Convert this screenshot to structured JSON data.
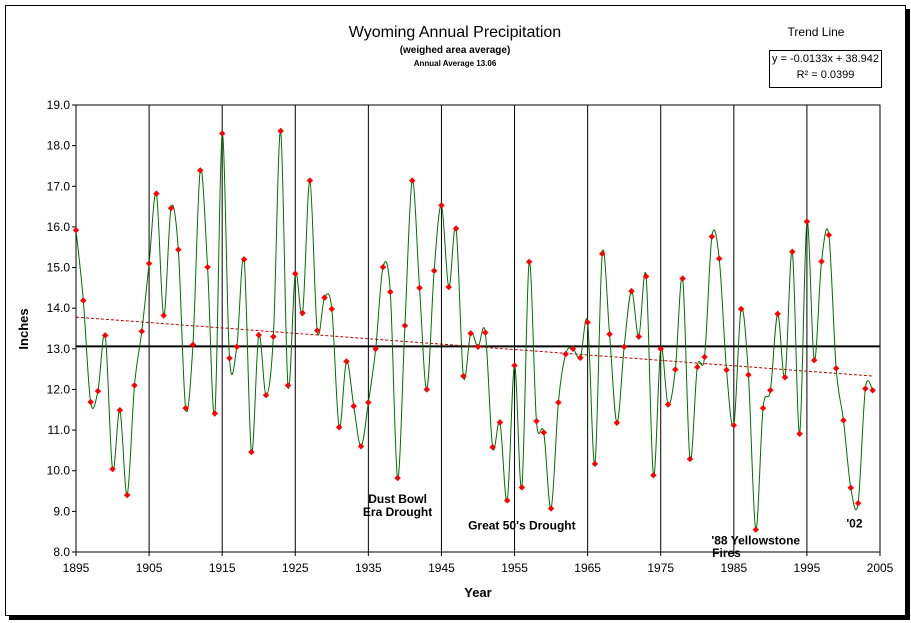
{
  "chart_data": {
    "type": "line",
    "title": "Wyoming Annual Precipitation",
    "subtitle": "(weighed area average)",
    "average_label": "Annual Average 13.06",
    "xlabel": "Year",
    "ylabel": "Inches",
    "xlim": [
      1895,
      2005
    ],
    "ylim": [
      8.0,
      19.0
    ],
    "x_ticks": [
      "1895",
      "1905",
      "1915",
      "1925",
      "1935",
      "1945",
      "1955",
      "1965",
      "1975",
      "1985",
      "1995",
      "2005"
    ],
    "y_ticks": [
      "8.0",
      "9.0",
      "10.0",
      "11.0",
      "12.0",
      "13.0",
      "14.0",
      "15.0",
      "16.0",
      "17.0",
      "18.0",
      "19.0"
    ],
    "grid": "vertical lines at decade ticks",
    "series": [
      {
        "color": "#007000",
        "marker_color": "#ff0000",
        "x": [
          1895,
          1896,
          1897,
          1898,
          1899,
          1900,
          1901,
          1902,
          1903,
          1904,
          1905,
          1906,
          1907,
          1908,
          1909,
          1910,
          1911,
          1912,
          1913,
          1914,
          1915,
          1916,
          1917,
          1918,
          1919,
          1920,
          1921,
          1922,
          1923,
          1924,
          1925,
          1926,
          1927,
          1928,
          1929,
          1930,
          1931,
          1932,
          1933,
          1934,
          1935,
          1936,
          1937,
          1938,
          1939,
          1940,
          1941,
          1942,
          1943,
          1944,
          1945,
          1946,
          1947,
          1948,
          1949,
          1950,
          1951,
          1952,
          1953,
          1954,
          1955,
          1956,
          1957,
          1958,
          1959,
          1960,
          1961,
          1962,
          1963,
          1964,
          1965,
          1966,
          1967,
          1968,
          1969,
          1970,
          1971,
          1972,
          1973,
          1974,
          1975,
          1976,
          1977,
          1978,
          1979,
          1980,
          1981,
          1982,
          1983,
          1984,
          1985,
          1986,
          1987,
          1988,
          1989,
          1990,
          1991,
          1992,
          1993,
          1994,
          1995,
          1996,
          1997,
          1998,
          1999,
          2000,
          2001,
          2002,
          2003,
          2004
        ],
        "values": [
          15.92,
          14.19,
          11.69,
          11.96,
          13.33,
          10.04,
          11.49,
          9.4,
          12.1,
          13.43,
          15.1,
          16.82,
          13.82,
          16.46,
          15.44,
          11.54,
          13.1,
          17.39,
          15.01,
          11.41,
          18.3,
          12.77,
          13.05,
          15.2,
          10.46,
          13.34,
          11.86,
          13.3,
          18.36,
          12.1,
          14.85,
          13.88,
          17.14,
          13.45,
          14.26,
          13.98,
          11.07,
          12.69,
          11.59,
          10.6,
          11.68,
          13.0,
          15.01,
          14.4,
          9.82,
          13.57,
          17.14,
          14.5,
          12.0,
          14.92,
          16.53,
          14.52,
          15.96,
          12.33,
          13.38,
          13.05,
          13.4,
          10.58,
          11.19,
          9.27,
          12.59,
          9.59,
          15.14,
          11.22,
          10.94,
          9.07,
          11.68,
          12.87,
          13.0,
          12.78,
          13.65,
          10.17,
          15.34,
          13.36,
          11.18,
          13.05,
          14.42,
          13.3,
          14.78,
          9.89,
          13.0,
          11.63,
          12.49,
          14.73,
          10.29,
          12.55,
          12.8,
          15.76,
          15.22,
          12.48,
          11.12,
          13.98,
          12.36,
          8.55,
          11.54,
          11.98,
          13.86,
          12.3,
          15.39,
          10.91,
          16.13,
          12.72,
          15.15,
          15.8,
          12.52,
          11.24,
          9.58,
          9.2,
          12.02,
          11.98
        ]
      }
    ],
    "average_line": {
      "value": 13.06,
      "color": "#000000"
    },
    "trend_line": {
      "equation": "y = -0.0133x + 38.942",
      "r2": "R² = 0.0399",
      "color": "#c00000",
      "x_start": 1895,
      "y_start": 13.78,
      "x_end": 2004,
      "y_end": 12.33
    },
    "legend_label": "Trend Line",
    "annotations": [
      {
        "text": "Dust Bowl",
        "x": 1939,
        "y": 9.2
      },
      {
        "text": "Era Drought",
        "x": 1939,
        "y": 8.88
      },
      {
        "text": "Great 50's Drought",
        "x": 1956,
        "y": 8.55
      },
      {
        "text": "'88 Yellowstone",
        "x": 1988,
        "y": 8.18
      },
      {
        "text": "Fires",
        "x": 1984,
        "y": 7.88
      },
      {
        "text": "'02",
        "x": 2001.5,
        "y": 8.6
      }
    ]
  }
}
